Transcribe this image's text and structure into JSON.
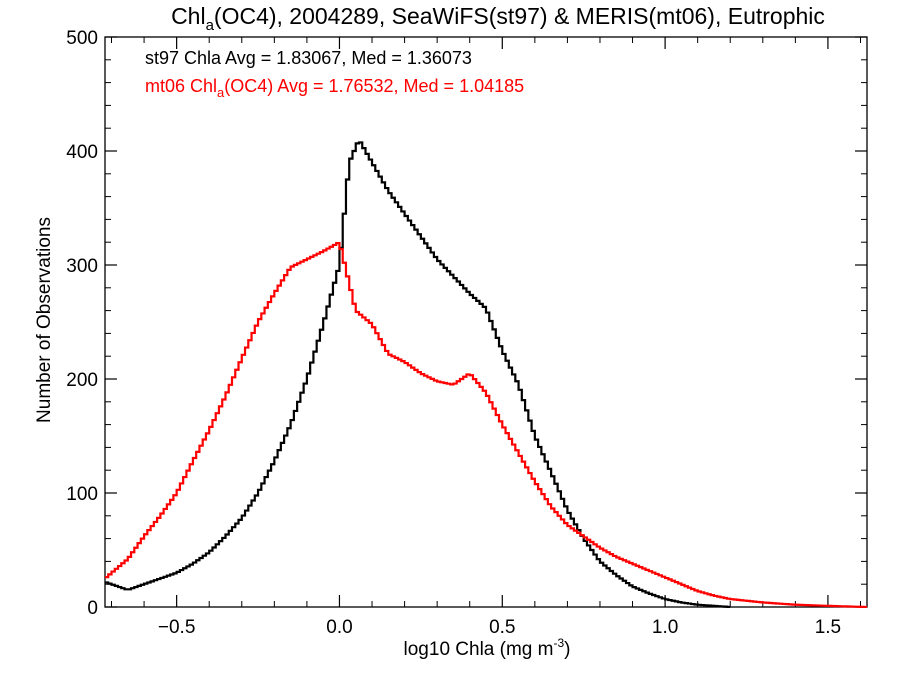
{
  "chart_data": {
    "type": "histogram",
    "title": {
      "base": "Chl",
      "sub": "a",
      "rest": "(OC4), 2004289, SeaWiFS(st97) & MERIS(mt06), Eutrophic"
    },
    "xlabel": {
      "base": "log10 Chla (mg m",
      "sup": "-3",
      "close": ")"
    },
    "ylabel": "Number of Observations",
    "xlim": [
      -0.72,
      1.62
    ],
    "ylim": [
      0,
      500
    ],
    "x_ticks": [
      -0.5,
      0.0,
      0.5,
      1.0,
      1.5
    ],
    "x_tick_labels": [
      "−0.5",
      "0.0",
      "0.5",
      "1.0",
      "1.5"
    ],
    "y_ticks": [
      0,
      100,
      200,
      300,
      400,
      500
    ],
    "y_tick_labels": [
      "0",
      "100",
      "200",
      "300",
      "400",
      "500"
    ],
    "grid": false,
    "annotations": [
      {
        "series": "st97",
        "color": "#000000",
        "prefix": "st97 Chla Avg = 1.83067, Med = 1.36073"
      },
      {
        "series": "mt06",
        "color": "#ff0000",
        "base": "mt06 Chl",
        "sub": "a",
        "rest": "(OC4) Avg = 1.76532, Med = 1.04185"
      }
    ],
    "series": [
      {
        "name": "st97",
        "color": "#000000",
        "style": "step",
        "points": [
          [
            -0.72,
            22
          ],
          [
            -0.65,
            15
          ],
          [
            -0.6,
            20
          ],
          [
            -0.55,
            25
          ],
          [
            -0.5,
            30
          ],
          [
            -0.45,
            38
          ],
          [
            -0.4,
            48
          ],
          [
            -0.35,
            62
          ],
          [
            -0.3,
            78
          ],
          [
            -0.25,
            100
          ],
          [
            -0.2,
            128
          ],
          [
            -0.15,
            160
          ],
          [
            -0.1,
            200
          ],
          [
            -0.05,
            248
          ],
          [
            0.0,
            300
          ],
          [
            0.03,
            390
          ],
          [
            0.06,
            410
          ],
          [
            0.1,
            390
          ],
          [
            0.15,
            365
          ],
          [
            0.2,
            345
          ],
          [
            0.25,
            325
          ],
          [
            0.3,
            305
          ],
          [
            0.35,
            290
          ],
          [
            0.4,
            275
          ],
          [
            0.45,
            262
          ],
          [
            0.5,
            225
          ],
          [
            0.55,
            195
          ],
          [
            0.6,
            150
          ],
          [
            0.65,
            118
          ],
          [
            0.7,
            85
          ],
          [
            0.75,
            60
          ],
          [
            0.8,
            40
          ],
          [
            0.85,
            28
          ],
          [
            0.9,
            18
          ],
          [
            0.95,
            12
          ],
          [
            1.0,
            7
          ],
          [
            1.05,
            4
          ],
          [
            1.1,
            2
          ],
          [
            1.15,
            1
          ],
          [
            1.2,
            0
          ]
        ]
      },
      {
        "name": "mt06",
        "color": "#ff0000",
        "style": "step",
        "points": [
          [
            -0.72,
            25
          ],
          [
            -0.65,
            42
          ],
          [
            -0.6,
            62
          ],
          [
            -0.55,
            80
          ],
          [
            -0.5,
            100
          ],
          [
            -0.45,
            128
          ],
          [
            -0.4,
            155
          ],
          [
            -0.35,
            185
          ],
          [
            -0.3,
            218
          ],
          [
            -0.25,
            250
          ],
          [
            -0.2,
            275
          ],
          [
            -0.15,
            298
          ],
          [
            -0.1,
            305
          ],
          [
            -0.05,
            312
          ],
          [
            0.0,
            320
          ],
          [
            0.05,
            260
          ],
          [
            0.1,
            248
          ],
          [
            0.15,
            222
          ],
          [
            0.2,
            215
          ],
          [
            0.25,
            205
          ],
          [
            0.3,
            198
          ],
          [
            0.35,
            195
          ],
          [
            0.4,
            205
          ],
          [
            0.45,
            188
          ],
          [
            0.5,
            160
          ],
          [
            0.55,
            135
          ],
          [
            0.6,
            110
          ],
          [
            0.65,
            88
          ],
          [
            0.7,
            72
          ],
          [
            0.75,
            62
          ],
          [
            0.8,
            52
          ],
          [
            0.85,
            44
          ],
          [
            0.9,
            38
          ],
          [
            0.95,
            32
          ],
          [
            1.0,
            26
          ],
          [
            1.05,
            20
          ],
          [
            1.1,
            14
          ],
          [
            1.15,
            10
          ],
          [
            1.2,
            7
          ],
          [
            1.3,
            4
          ],
          [
            1.4,
            2
          ],
          [
            1.5,
            1
          ],
          [
            1.62,
            0
          ]
        ]
      }
    ]
  }
}
